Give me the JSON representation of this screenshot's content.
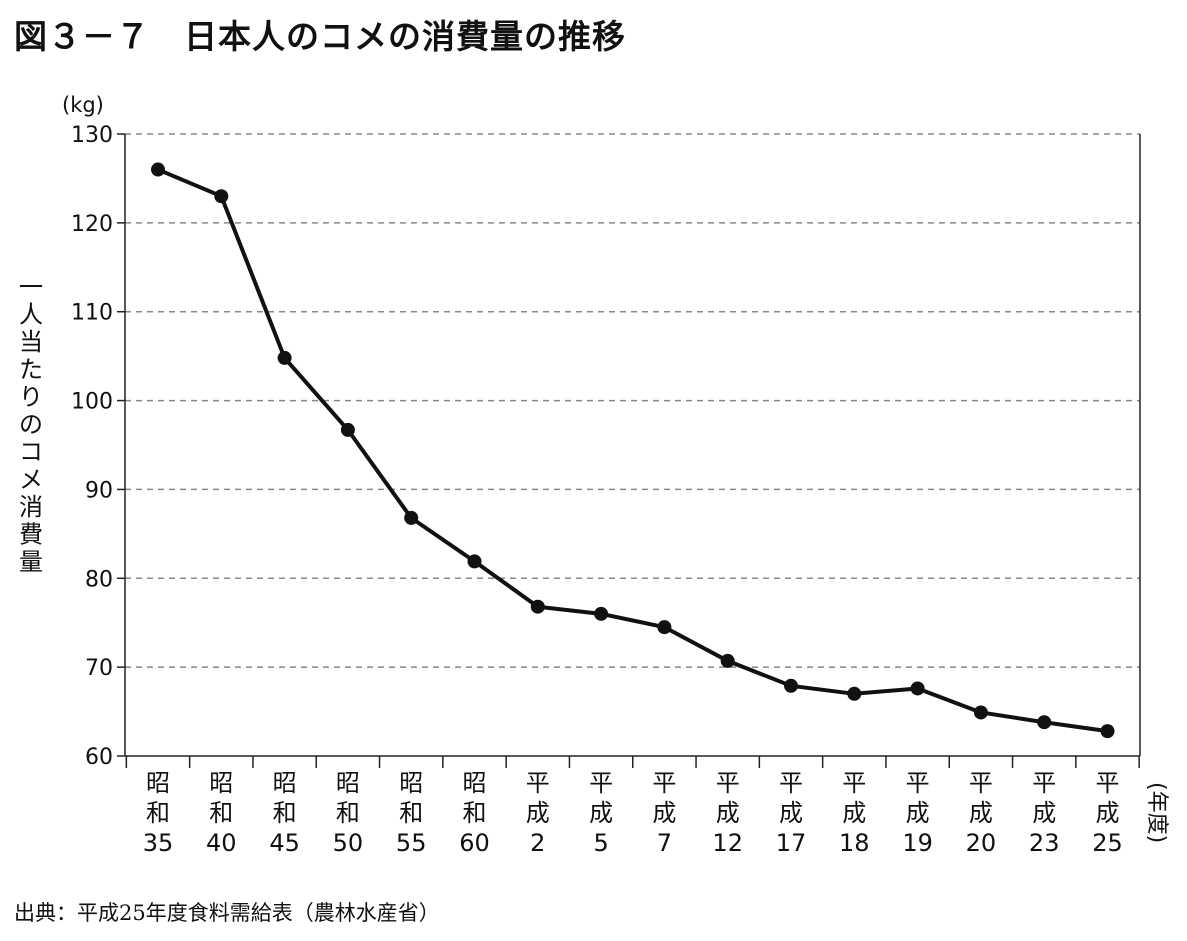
{
  "header": {
    "title": "図３－７　日本人のコメの消費量の推移"
  },
  "footer": {
    "source": "出典：平成25年度食料需給表（農林水産省）"
  },
  "chart_data": {
    "type": "line",
    "title": "図３－７　日本人のコメの消費量の推移",
    "unit_label": "(kg)",
    "ylabel": "一人当たりのコメ消費量",
    "xlabel": "(年度)",
    "ylim": [
      60,
      130
    ],
    "yticks": [
      60,
      70,
      80,
      90,
      100,
      110,
      120,
      130
    ],
    "grid": true,
    "categories": [
      [
        "昭",
        "和",
        "35"
      ],
      [
        "昭",
        "和",
        "40"
      ],
      [
        "昭",
        "和",
        "45"
      ],
      [
        "昭",
        "和",
        "50"
      ],
      [
        "昭",
        "和",
        "55"
      ],
      [
        "昭",
        "和",
        "60"
      ],
      [
        "平",
        "成",
        "2"
      ],
      [
        "平",
        "成",
        "5"
      ],
      [
        "平",
        "成",
        "7"
      ],
      [
        "平",
        "成",
        "12"
      ],
      [
        "平",
        "成",
        "17"
      ],
      [
        "平",
        "成",
        "18"
      ],
      [
        "平",
        "成",
        "19"
      ],
      [
        "平",
        "成",
        "20"
      ],
      [
        "平",
        "成",
        "23"
      ],
      [
        "平",
        "成",
        "25"
      ]
    ],
    "series": [
      {
        "values": [
          126.0,
          123.0,
          104.8,
          96.7,
          86.8,
          81.9,
          76.8,
          76.0,
          74.5,
          70.7,
          67.9,
          67.0,
          67.6,
          64.9,
          63.8,
          62.8
        ]
      }
    ],
    "colors": {
      "line": "#111111",
      "grid": "#888888",
      "axis": "#222222"
    }
  }
}
